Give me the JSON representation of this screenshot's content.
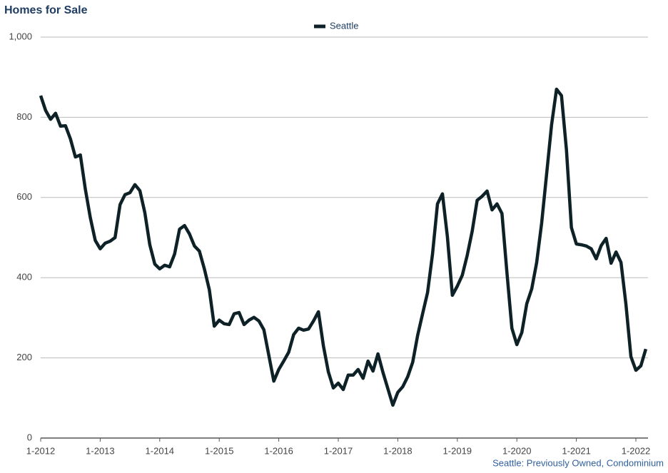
{
  "chart_data": {
    "type": "line",
    "title": "Homes for Sale",
    "note": "Seattle: Previously Owned, Condominium",
    "categories": [
      "1-2012",
      null,
      null,
      null,
      null,
      null,
      null,
      null,
      null,
      null,
      null,
      null,
      "1-2013",
      null,
      null,
      null,
      null,
      null,
      null,
      null,
      null,
      null,
      null,
      null,
      "1-2014",
      null,
      null,
      null,
      null,
      null,
      null,
      null,
      null,
      null,
      null,
      null,
      "1-2015",
      null,
      null,
      null,
      null,
      null,
      null,
      null,
      null,
      null,
      null,
      null,
      "1-2016",
      null,
      null,
      null,
      null,
      null,
      null,
      null,
      null,
      null,
      null,
      null,
      "1-2017",
      null,
      null,
      null,
      null,
      null,
      null,
      null,
      null,
      null,
      null,
      null,
      "1-2018",
      null,
      null,
      null,
      null,
      null,
      null,
      null,
      null,
      null,
      null,
      null,
      "1-2019",
      null,
      null,
      null,
      null,
      null,
      null,
      null,
      null,
      null,
      null,
      null,
      "1-2020",
      null,
      null,
      null,
      null,
      null,
      null,
      null,
      null,
      null,
      null,
      null,
      "1-2021",
      null,
      null,
      null,
      null,
      null,
      null,
      null,
      null,
      null,
      null,
      null,
      "1-2022",
      null,
      null
    ],
    "series": [
      {
        "name": "Seattle",
        "color": "#0d2126",
        "values": [
          854,
          817,
          795,
          810,
          778,
          779,
          746,
          701,
          706,
          621,
          550,
          493,
          472,
          486,
          491,
          500,
          582,
          607,
          612,
          632,
          617,
          562,
          482,
          434,
          422,
          431,
          427,
          459,
          521,
          530,
          509,
          479,
          466,
          422,
          370,
          279,
          294,
          285,
          283,
          310,
          313,
          283,
          294,
          301,
          292,
          270,
          206,
          142,
          171,
          192,
          214,
          258,
          274,
          269,
          272,
          292,
          315,
          230,
          165,
          125,
          137,
          121,
          157,
          157,
          171,
          149,
          192,
          167,
          210,
          164,
          123,
          82,
          114,
          128,
          153,
          189,
          256,
          310,
          363,
          459,
          584,
          609,
          502,
          356,
          379,
          406,
          456,
          516,
          593,
          603,
          616,
          569,
          584,
          560,
          413,
          274,
          233,
          263,
          335,
          372,
          438,
          536,
          658,
          781,
          870,
          854,
          719,
          525,
          484,
          482,
          479,
          472,
          447,
          480,
          498,
          436,
          464,
          438,
          333,
          203,
          169,
          180,
          222
        ]
      }
    ],
    "ylim": [
      0,
      1000
    ],
    "yticks": [
      0,
      200,
      400,
      600,
      800,
      {
        "value": 1000,
        "label": "1,000"
      }
    ],
    "grid": true,
    "legend": "top"
  }
}
